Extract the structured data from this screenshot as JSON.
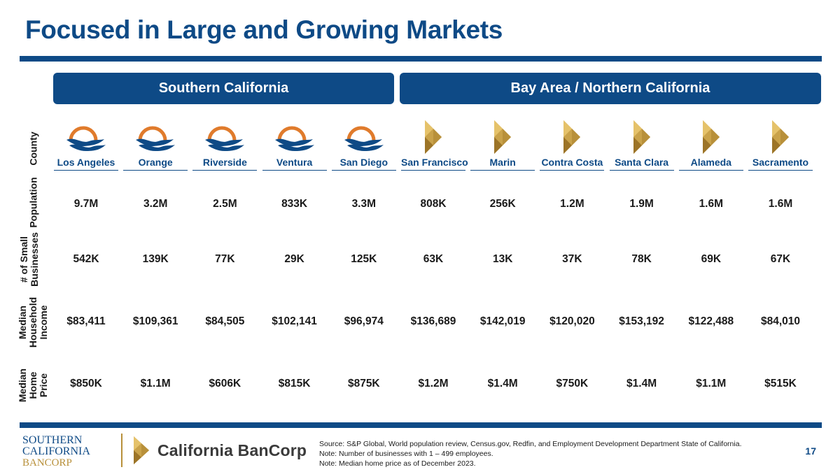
{
  "title": "Focused in Large and Growing Markets",
  "regions": {
    "south": "Southern California",
    "north": "Bay Area / Northern California"
  },
  "row_labels": {
    "county": "County",
    "population": "Population",
    "businesses": [
      "# of Small",
      "Businesses"
    ],
    "income": [
      "Median",
      "Household",
      "Income"
    ],
    "home": [
      "Median",
      "Home",
      "Price"
    ]
  },
  "counties": [
    {
      "name": "Los Angeles",
      "brand": "southern",
      "population": "9.7M",
      "businesses": "542K",
      "income": "$83,411",
      "home_price": "$850K"
    },
    {
      "name": "Orange",
      "brand": "southern",
      "population": "3.2M",
      "businesses": "139K",
      "income": "$109,361",
      "home_price": "$1.1M"
    },
    {
      "name": "Riverside",
      "brand": "southern",
      "population": "2.5M",
      "businesses": "77K",
      "income": "$84,505",
      "home_price": "$606K"
    },
    {
      "name": "Ventura",
      "brand": "southern",
      "population": "833K",
      "businesses": "29K",
      "income": "$102,141",
      "home_price": "$815K"
    },
    {
      "name": "San Diego",
      "brand": "southern",
      "population": "3.3M",
      "businesses": "125K",
      "income": "$96,974",
      "home_price": "$875K"
    },
    {
      "name": "San Francisco",
      "brand": "california",
      "population": "808K",
      "businesses": "63K",
      "income": "$136,689",
      "home_price": "$1.2M"
    },
    {
      "name": "Marin",
      "brand": "california",
      "population": "256K",
      "businesses": "13K",
      "income": "$142,019",
      "home_price": "$1.4M"
    },
    {
      "name": "Contra Costa",
      "brand": "california",
      "population": "1.2M",
      "businesses": "37K",
      "income": "$120,020",
      "home_price": "$750K"
    },
    {
      "name": "Santa Clara",
      "brand": "california",
      "population": "1.9M",
      "businesses": "78K",
      "income": "$153,192",
      "home_price": "$1.4M"
    },
    {
      "name": "Alameda",
      "brand": "california",
      "population": "1.6M",
      "businesses": "69K",
      "income": "$122,488",
      "home_price": "$1.1M"
    },
    {
      "name": "Sacramento",
      "brand": "california",
      "population": "1.6M",
      "businesses": "67K",
      "income": "$84,010",
      "home_price": "$515K"
    }
  ],
  "footer": {
    "logo1": [
      "SOUTHERN",
      "CALIFORNIA",
      "BANCORP"
    ],
    "logo2": "California BanCorp",
    "source_lines": [
      "Source: S&P Global, World population review, Census.gov, Redfin, and Employment Development Department State of California.",
      "Note: Number of businesses with 1 – 499 employees.",
      "Note: Median home price as of December 2023."
    ],
    "page_number": "17"
  },
  "colors": {
    "brand_blue": "#0e4a86",
    "wave_orange": "#e07b2c",
    "gold": "#b8903a"
  }
}
